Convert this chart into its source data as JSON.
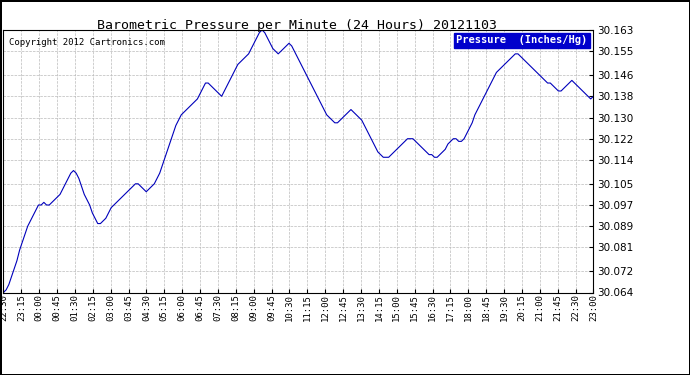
{
  "title": "Barometric Pressure per Minute (24 Hours) 20121103",
  "copyright": "Copyright 2012 Cartronics.com",
  "legend_label": "Pressure  (Inches/Hg)",
  "line_color": "#0000bb",
  "background_color": "#ffffff",
  "grid_color": "#bbbbbb",
  "legend_bg": "#0000cc",
  "legend_text_color": "#ffffff",
  "border_color": "#000000",
  "ylim": [
    30.064,
    30.163
  ],
  "yticks": [
    30.064,
    30.072,
    30.081,
    30.089,
    30.097,
    30.105,
    30.114,
    30.122,
    30.13,
    30.138,
    30.146,
    30.155,
    30.163
  ],
  "xtick_labels": [
    "22:30",
    "23:15",
    "00:00",
    "00:45",
    "01:30",
    "02:15",
    "03:00",
    "03:45",
    "04:30",
    "05:15",
    "06:00",
    "06:45",
    "07:30",
    "08:15",
    "09:00",
    "09:45",
    "10:30",
    "11:15",
    "12:00",
    "12:45",
    "13:30",
    "14:15",
    "15:00",
    "15:45",
    "16:30",
    "17:15",
    "18:00",
    "18:45",
    "19:30",
    "20:15",
    "21:00",
    "21:45",
    "22:30",
    "23:00"
  ],
  "pressure_data": [
    30.064,
    30.065,
    30.067,
    30.07,
    30.073,
    30.076,
    30.08,
    30.083,
    30.086,
    30.089,
    30.091,
    30.093,
    30.095,
    30.097,
    30.097,
    30.098,
    30.097,
    30.097,
    30.098,
    30.099,
    30.1,
    30.101,
    30.103,
    30.105,
    30.107,
    30.109,
    30.11,
    30.109,
    30.107,
    30.104,
    30.101,
    30.099,
    30.097,
    30.094,
    30.092,
    30.09,
    30.09,
    30.091,
    30.092,
    30.094,
    30.096,
    30.097,
    30.098,
    30.099,
    30.1,
    30.101,
    30.102,
    30.103,
    30.104,
    30.105,
    30.105,
    30.104,
    30.103,
    30.102,
    30.103,
    30.104,
    30.105,
    30.107,
    30.109,
    30.112,
    30.115,
    30.118,
    30.121,
    30.124,
    30.127,
    30.129,
    30.131,
    30.132,
    30.133,
    30.134,
    30.135,
    30.136,
    30.137,
    30.139,
    30.141,
    30.143,
    30.143,
    30.142,
    30.141,
    30.14,
    30.139,
    30.138,
    30.14,
    30.142,
    30.144,
    30.146,
    30.148,
    30.15,
    30.151,
    30.152,
    30.153,
    30.154,
    30.156,
    30.158,
    30.16,
    30.162,
    30.163,
    30.162,
    30.16,
    30.158,
    30.156,
    30.155,
    30.154,
    30.155,
    30.156,
    30.157,
    30.158,
    30.157,
    30.155,
    30.153,
    30.151,
    30.149,
    30.147,
    30.145,
    30.143,
    30.141,
    30.139,
    30.137,
    30.135,
    30.133,
    30.131,
    30.13,
    30.129,
    30.128,
    30.128,
    30.129,
    30.13,
    30.131,
    30.132,
    30.133,
    30.132,
    30.131,
    30.13,
    30.129,
    30.127,
    30.125,
    30.123,
    30.121,
    30.119,
    30.117,
    30.116,
    30.115,
    30.115,
    30.115,
    30.116,
    30.117,
    30.118,
    30.119,
    30.12,
    30.121,
    30.122,
    30.122,
    30.122,
    30.121,
    30.12,
    30.119,
    30.118,
    30.117,
    30.116,
    30.116,
    30.115,
    30.115,
    30.116,
    30.117,
    30.118,
    30.12,
    30.121,
    30.122,
    30.122,
    30.121,
    30.121,
    30.122,
    30.124,
    30.126,
    30.128,
    30.131,
    30.133,
    30.135,
    30.137,
    30.139,
    30.141,
    30.143,
    30.145,
    30.147,
    30.148,
    30.149,
    30.15,
    30.151,
    30.152,
    30.153,
    30.154,
    30.154,
    30.153,
    30.152,
    30.151,
    30.15,
    30.149,
    30.148,
    30.147,
    30.146,
    30.145,
    30.144,
    30.143,
    30.143,
    30.142,
    30.141,
    30.14,
    30.14,
    30.141,
    30.142,
    30.143,
    30.144,
    30.143,
    30.142,
    30.141,
    30.14,
    30.139,
    30.138,
    30.137,
    30.138
  ]
}
